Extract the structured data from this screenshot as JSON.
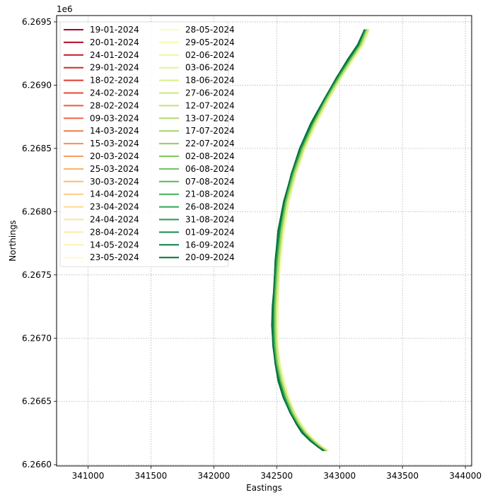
{
  "chart_data": {
    "type": "line",
    "title": "",
    "xlabel": "Eastings",
    "ylabel": "Northings",
    "y_offset_label": "1e6",
    "xlim": [
      340750,
      344050
    ],
    "ylim": [
      6265990,
      6269550
    ],
    "xticks": [
      341000,
      341500,
      342000,
      342500,
      343000,
      343500,
      344000
    ],
    "xtick_labels": [
      "341000",
      "341500",
      "342000",
      "342500",
      "343000",
      "343500",
      "344000"
    ],
    "yticks": [
      6266000,
      6266500,
      6267000,
      6267500,
      6268000,
      6268500,
      6269000,
      6269500
    ],
    "ytick_labels": [
      "6.2660",
      "6.2665",
      "6.2670",
      "6.2675",
      "6.2680",
      "6.2685",
      "6.2690",
      "6.2695"
    ],
    "grid": true,
    "legend_position": "top-left",
    "legend_columns": 2,
    "baseline_shoreline": {
      "x": [
        343200,
        343150,
        343070,
        342980,
        342880,
        342780,
        342690,
        342620,
        342560,
        342520,
        342495,
        342480,
        342472,
        342470,
        342475,
        342490,
        342520,
        342560,
        342610,
        342660,
        342710,
        342770,
        342830,
        342875
      ],
      "y": [
        6269440,
        6269320,
        6269200,
        6269060,
        6268890,
        6268700,
        6268500,
        6268300,
        6268080,
        6267850,
        6267620,
        6267400,
        6267250,
        6267100,
        6266940,
        6266800,
        6266660,
        6266530,
        6266410,
        6266320,
        6266250,
        6266190,
        6266140,
        6266110
      ]
    },
    "series": [
      {
        "name": "19-01-2024",
        "color": "#a50026",
        "dx": 18,
        "dy": 0
      },
      {
        "name": "20-01-2024",
        "color": "#b30c26",
        "dx": 22,
        "dy": 0
      },
      {
        "name": "24-01-2024",
        "color": "#c21c27",
        "dx": 16,
        "dy": 0
      },
      {
        "name": "29-01-2024",
        "color": "#d12b27",
        "dx": 25,
        "dy": 0
      },
      {
        "name": "18-02-2024",
        "color": "#dc3b2c",
        "dx": 14,
        "dy": 0
      },
      {
        "name": "24-02-2024",
        "color": "#e34933",
        "dx": 20,
        "dy": 0
      },
      {
        "name": "28-02-2024",
        "color": "#eb5a3a",
        "dx": 12,
        "dy": 0
      },
      {
        "name": "09-03-2024",
        "color": "#f26841",
        "dx": 24,
        "dy": 0
      },
      {
        "name": "14-03-2024",
        "color": "#f47b4a",
        "dx": 15,
        "dy": 0
      },
      {
        "name": "15-03-2024",
        "color": "#f78d53",
        "dx": 21,
        "dy": 0
      },
      {
        "name": "20-03-2024",
        "color": "#f99f5d",
        "dx": 26,
        "dy": 0
      },
      {
        "name": "25-03-2024",
        "color": "#fbaf67",
        "dx": 28,
        "dy": 0
      },
      {
        "name": "30-03-2024",
        "color": "#fcbd73",
        "dx": 30,
        "dy": 0
      },
      {
        "name": "14-04-2024",
        "color": "#fdca7f",
        "dx": 27,
        "dy": 0
      },
      {
        "name": "23-04-2024",
        "color": "#fdd78c",
        "dx": 32,
        "dy": 0
      },
      {
        "name": "24-04-2024",
        "color": "#fee39a",
        "dx": 29,
        "dy": 0
      },
      {
        "name": "28-04-2024",
        "color": "#feeba6",
        "dx": 34,
        "dy": 0
      },
      {
        "name": "14-05-2024",
        "color": "#fef3b3",
        "dx": 31,
        "dy": 0
      },
      {
        "name": "23-05-2024",
        "color": "#fffbc0",
        "dx": 36,
        "dy": 0
      },
      {
        "name": "28-05-2024",
        "color": "#fbfdbc",
        "dx": 33,
        "dy": 0
      },
      {
        "name": "29-05-2024",
        "color": "#f4faae",
        "dx": 38,
        "dy": 0
      },
      {
        "name": "02-06-2024",
        "color": "#ecf7a2",
        "dx": 35,
        "dy": 0
      },
      {
        "name": "03-06-2024",
        "color": "#e3f397",
        "dx": 30,
        "dy": 0
      },
      {
        "name": "18-06-2024",
        "color": "#d9ef8b",
        "dx": 27,
        "dy": 0
      },
      {
        "name": "27-06-2024",
        "color": "#cbe982",
        "dx": 24,
        "dy": 0
      },
      {
        "name": "12-07-2024",
        "color": "#bde37a",
        "dx": 21,
        "dy": 0
      },
      {
        "name": "13-07-2024",
        "color": "#aedc70",
        "dx": 18,
        "dy": 0
      },
      {
        "name": "17-07-2024",
        "color": "#9fd668",
        "dx": 15,
        "dy": 0
      },
      {
        "name": "22-07-2024",
        "color": "#90cf62",
        "dx": 12,
        "dy": 0
      },
      {
        "name": "02-08-2024",
        "color": "#80c75f",
        "dx": 10,
        "dy": 0
      },
      {
        "name": "06-08-2024",
        "color": "#6dbf5c",
        "dx": 8,
        "dy": 0
      },
      {
        "name": "07-08-2024",
        "color": "#59b859",
        "dx": 6,
        "dy": 0
      },
      {
        "name": "21-08-2024",
        "color": "#45b055",
        "dx": 4,
        "dy": 0
      },
      {
        "name": "26-08-2024",
        "color": "#30a450",
        "dx": 2,
        "dy": 0
      },
      {
        "name": "31-08-2024",
        "color": "#22994b",
        "dx": 0,
        "dy": 0
      },
      {
        "name": "01-09-2024",
        "color": "#168d46",
        "dx": -2,
        "dy": 0
      },
      {
        "name": "16-09-2024",
        "color": "#0c7f41",
        "dx": -4,
        "dy": 0
      },
      {
        "name": "20-09-2024",
        "color": "#04703b",
        "dx": -6,
        "dy": 0
      }
    ]
  }
}
